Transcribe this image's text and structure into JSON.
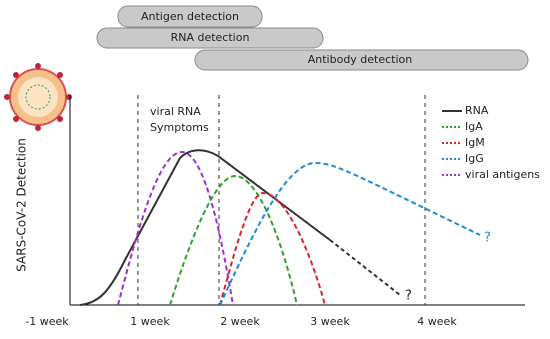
{
  "detection_bars": [
    "Antigen detection",
    "RNA detection",
    "Antibody detection"
  ],
  "y_axis_label": "SARS-CoV-2 Detection",
  "x_labels": [
    "-1 week",
    "1 week",
    "2 week",
    "3 week",
    "4 week"
  ],
  "annotations": {
    "line1": "viral RNA",
    "line2": "Symptoms",
    "rna_unknown": "?",
    "igg_unknown": "?"
  },
  "legend": [
    "RNA",
    "IgA",
    "IgM",
    "IgG",
    "viral antigens"
  ]
}
